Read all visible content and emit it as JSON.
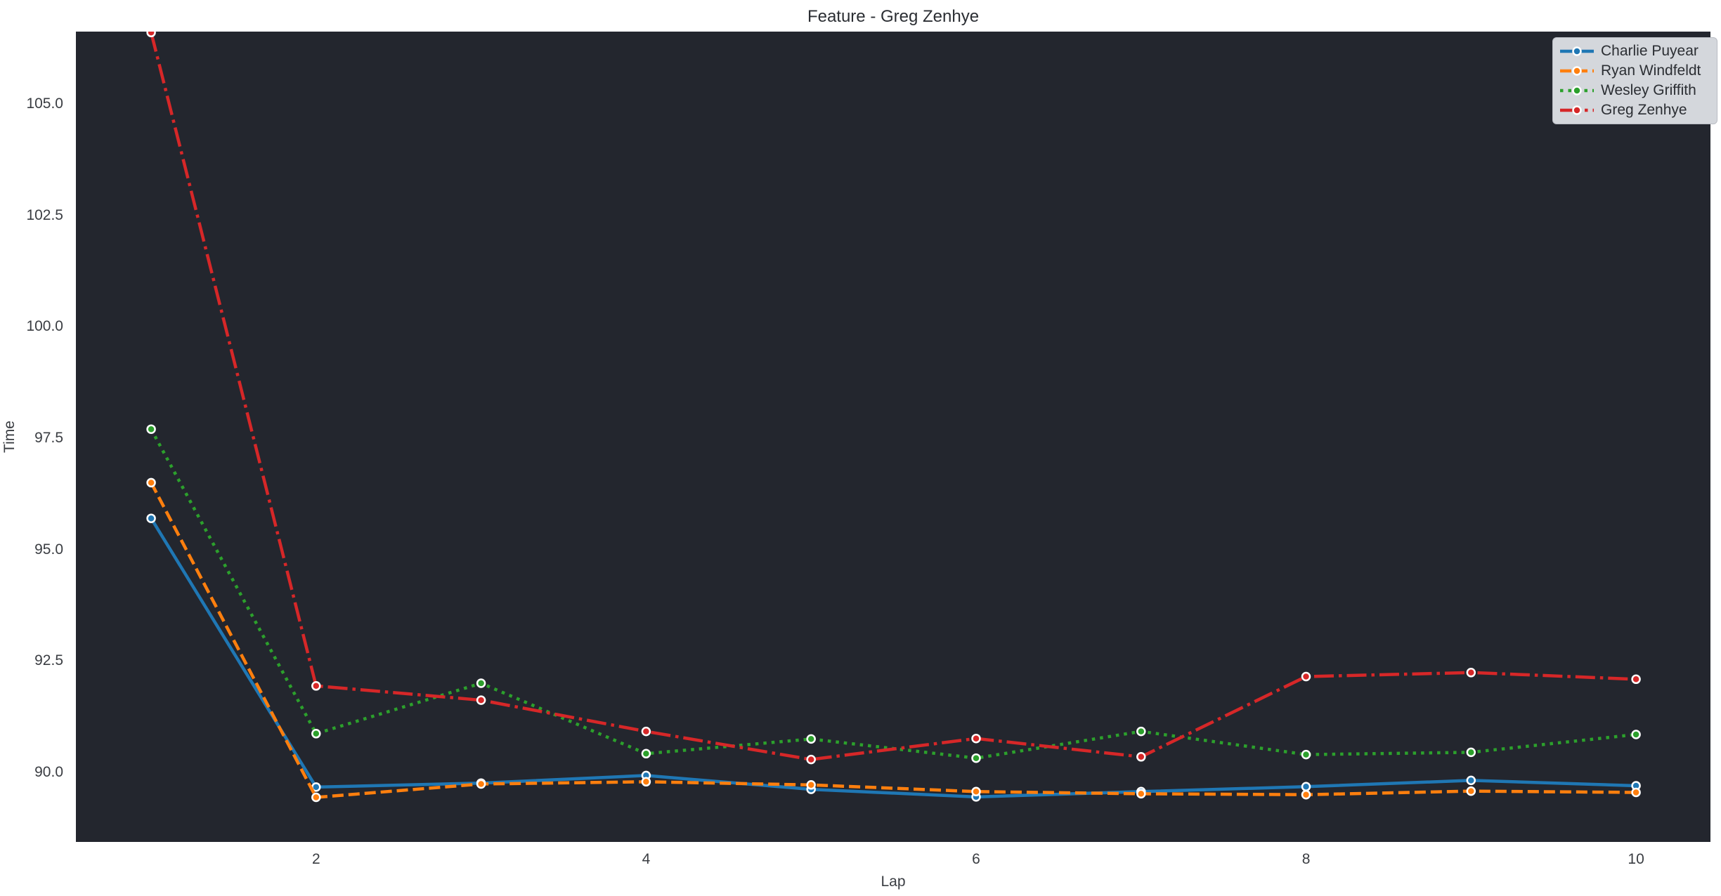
{
  "figure": {
    "title": "Feature - Greg Zenhye",
    "background": "#ffffff"
  },
  "legend": {
    "background": "#d4d7dc",
    "border": "#b9bcc3",
    "text_color": "#2b2e33",
    "position": "upper right"
  },
  "chart_data": {
    "type": "line",
    "title": "Feature - Greg Zenhye",
    "xlabel": "Lap",
    "ylabel": "Time",
    "x": [
      1,
      2,
      3,
      4,
      5,
      6,
      7,
      8,
      9,
      10
    ],
    "x_tick_labels": [
      "2",
      "4",
      "6",
      "8",
      "10"
    ],
    "y_tick_labels": [
      "105.0",
      "102.5",
      "100.0",
      "97.5",
      "95.0",
      "92.5",
      "90.0"
    ],
    "xlim": [
      0.544,
      10.451
    ],
    "ylim": [
      88.44,
      106.62
    ],
    "grid": false,
    "legend_position": "upper right",
    "plot_background": "#23262e",
    "marker": "circle",
    "marker_edge_color": "#ffffff",
    "series": [
      {
        "name": "Charlie Puyear",
        "color": "#1f77b4",
        "linestyle": "solid",
        "values": [
          95.7,
          89.67,
          89.76,
          89.93,
          89.62,
          89.45,
          89.57,
          89.68,
          89.82,
          89.7
        ]
      },
      {
        "name": "Ryan Windfeldt",
        "color": "#ff7f0e",
        "linestyle": "dashed",
        "values": [
          96.5,
          89.44,
          89.74,
          89.79,
          89.72,
          89.57,
          89.52,
          89.5,
          89.58,
          89.55
        ]
      },
      {
        "name": "Wesley Griffith",
        "color": "#2ca02c",
        "linestyle": "dotted",
        "values": [
          97.7,
          90.87,
          92.0,
          90.42,
          90.75,
          90.32,
          90.92,
          90.4,
          90.45,
          90.85
        ]
      },
      {
        "name": "Greg Zenhye",
        "color": "#d62728",
        "linestyle": "dashdot",
        "values": [
          106.6,
          91.94,
          91.62,
          90.92,
          90.29,
          90.76,
          90.35,
          92.15,
          92.24,
          92.09
        ]
      }
    ]
  }
}
